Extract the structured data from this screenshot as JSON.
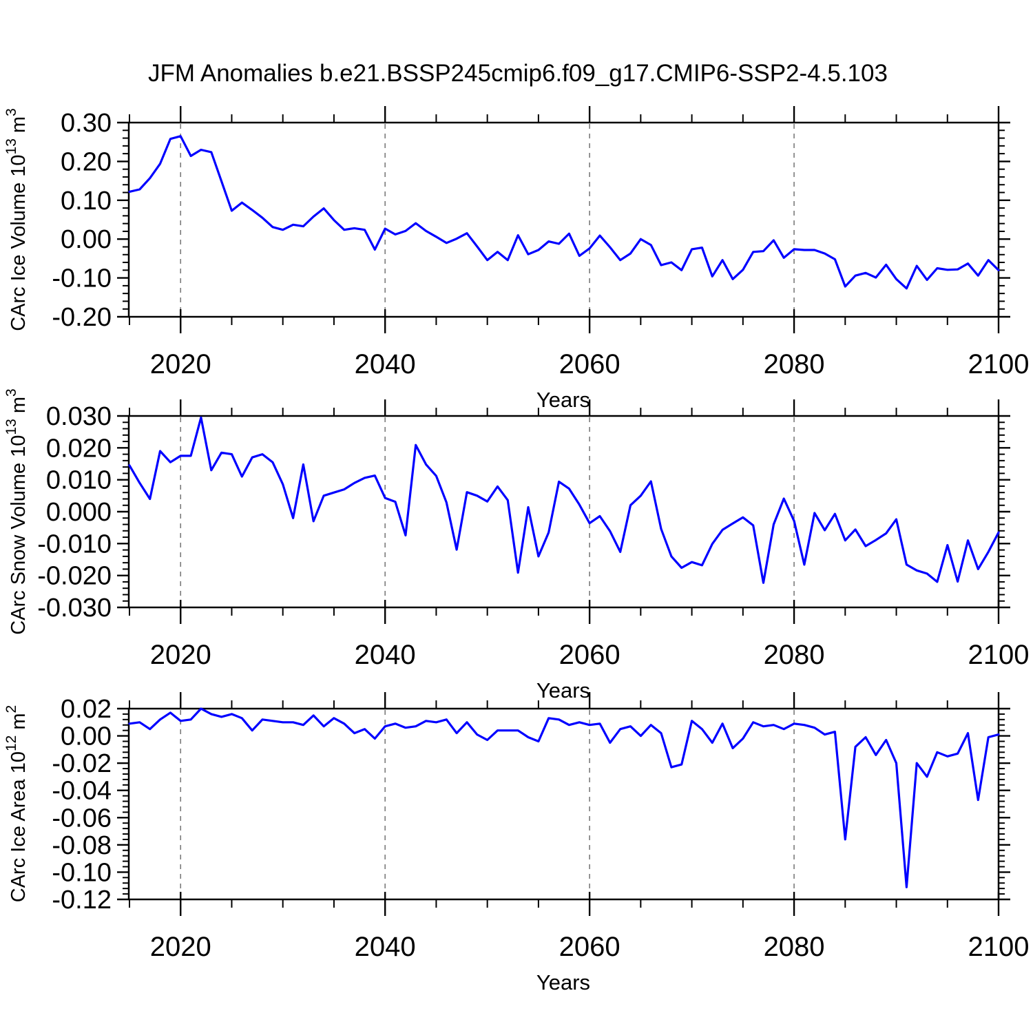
{
  "title": "JFM Anomalies b.e21.BSSP245cmip6.f09_g17.CMIP6-SSP2-4.5.103",
  "colors": {
    "line": "#0000ff",
    "axis": "#000000",
    "gridline": "#7a7a7a",
    "background": "#ffffff"
  },
  "x_axis": {
    "label": "Years",
    "range": [
      2015,
      2100
    ],
    "major_ticks": [
      2020,
      2040,
      2060,
      2080,
      2100
    ],
    "minor_tick_step": 5,
    "gridline_years": [
      2020,
      2040,
      2060,
      2080
    ]
  },
  "years": [
    2015,
    2016,
    2017,
    2018,
    2019,
    2020,
    2021,
    2022,
    2023,
    2024,
    2025,
    2026,
    2027,
    2028,
    2029,
    2030,
    2031,
    2032,
    2033,
    2034,
    2035,
    2036,
    2037,
    2038,
    2039,
    2040,
    2041,
    2042,
    2043,
    2044,
    2045,
    2046,
    2047,
    2048,
    2049,
    2050,
    2051,
    2052,
    2053,
    2054,
    2055,
    2056,
    2057,
    2058,
    2059,
    2060,
    2061,
    2062,
    2063,
    2064,
    2065,
    2066,
    2067,
    2068,
    2069,
    2070,
    2071,
    2072,
    2073,
    2074,
    2075,
    2076,
    2077,
    2078,
    2079,
    2080,
    2081,
    2082,
    2083,
    2084,
    2085,
    2086,
    2087,
    2088,
    2089,
    2090,
    2091,
    2092,
    2093,
    2094,
    2095,
    2096,
    2097,
    2098,
    2099,
    2100
  ],
  "chart_data": [
    {
      "type": "line",
      "name": "carc_ice_volume",
      "ylabel_text": "CArc Ice Volume 10^13 m^3",
      "ylabel": {
        "prefix": "CArc Ice Volume 10",
        "exponent": "13",
        "unit": " m",
        "unit_exponent": "3"
      },
      "ylim": [
        -0.2,
        0.3
      ],
      "ytick_values": [
        0.3,
        0.2,
        0.1,
        0.0,
        -0.1,
        -0.2
      ],
      "ytick_labels": [
        "0.30",
        "0.20",
        "0.10",
        "0.00",
        "-0.10",
        "-0.20"
      ],
      "minor_tick_step": 0.02,
      "values": [
        0.122,
        0.128,
        0.157,
        0.194,
        0.258,
        0.265,
        0.214,
        0.23,
        0.224,
        0.149,
        0.073,
        0.094,
        0.075,
        0.055,
        0.031,
        0.024,
        0.037,
        0.033,
        0.058,
        0.079,
        0.049,
        0.024,
        0.028,
        0.024,
        -0.027,
        0.027,
        0.012,
        0.021,
        0.041,
        0.021,
        0.006,
        -0.01,
        0.001,
        0.015,
        -0.019,
        -0.054,
        -0.033,
        -0.054,
        0.01,
        -0.039,
        -0.028,
        -0.006,
        -0.012,
        0.014,
        -0.043,
        -0.024,
        0.009,
        -0.021,
        -0.054,
        -0.037,
        0.0,
        -0.015,
        -0.067,
        -0.06,
        -0.08,
        -0.026,
        -0.022,
        -0.096,
        -0.054,
        -0.103,
        -0.079,
        -0.033,
        -0.031,
        -0.003,
        -0.048,
        -0.026,
        -0.028,
        -0.028,
        -0.037,
        -0.052,
        -0.122,
        -0.094,
        -0.087,
        -0.099,
        -0.066,
        -0.103,
        -0.127,
        -0.069,
        -0.105,
        -0.075,
        -0.079,
        -0.078,
        -0.063,
        -0.094,
        -0.054,
        -0.08
      ]
    },
    {
      "type": "line",
      "name": "carc_snow_volume",
      "ylabel_text": "CArc Snow Volume 10^13 m^3",
      "ylabel": {
        "prefix": "CArc Snow Volume 10",
        "exponent": "13",
        "unit": " m",
        "unit_exponent": "3"
      },
      "ylim": [
        -0.03,
        0.03
      ],
      "ytick_values": [
        0.03,
        0.02,
        0.01,
        0.0,
        -0.01,
        -0.02,
        -0.03
      ],
      "ytick_labels": [
        "0.030",
        "0.020",
        "0.010",
        "0.000",
        "-0.010",
        "-0.020",
        "-0.030"
      ],
      "minor_tick_step": 0.002,
      "values": [
        0.0145,
        0.009,
        0.004,
        0.019,
        0.0155,
        0.0175,
        0.0175,
        0.0295,
        0.013,
        0.0185,
        0.018,
        0.011,
        0.017,
        0.018,
        0.0155,
        0.0086,
        -0.002,
        0.0148,
        -0.003,
        0.005,
        0.006,
        0.007,
        0.009,
        0.0106,
        0.0113,
        0.0043,
        0.0031,
        -0.0074,
        0.0209,
        0.0148,
        0.0112,
        0.0029,
        -0.0119,
        0.0061,
        0.005,
        0.0032,
        0.0079,
        0.0036,
        -0.0191,
        0.0014,
        -0.014,
        -0.0065,
        0.0094,
        0.0072,
        0.0022,
        -0.0036,
        -0.0014,
        -0.0061,
        -0.0126,
        0.002,
        0.005,
        0.0095,
        -0.0054,
        -0.014,
        -0.0176,
        -0.0158,
        -0.0168,
        -0.0101,
        -0.0057,
        -0.0037,
        -0.0018,
        -0.0043,
        -0.0223,
        -0.004,
        0.0041,
        -0.0029,
        -0.0166,
        -0.0004,
        -0.0058,
        -0.0007,
        -0.009,
        -0.0056,
        -0.0108,
        -0.0089,
        -0.0068,
        -0.0024,
        -0.0166,
        -0.0184,
        -0.0194,
        -0.022,
        -0.0105,
        -0.0219,
        -0.009,
        -0.018,
        -0.0126,
        -0.0065
      ]
    },
    {
      "type": "line",
      "name": "carc_ice_area",
      "ylabel_text": "CArc Ice Area 10^12 m^2",
      "ylabel": {
        "prefix": "CArc Ice Area 10",
        "exponent": "12",
        "unit": " m",
        "unit_exponent": "2"
      },
      "ylim": [
        -0.12,
        0.02
      ],
      "ytick_values": [
        0.02,
        0.0,
        -0.02,
        -0.04,
        -0.06,
        -0.08,
        -0.1,
        -0.12
      ],
      "ytick_labels": [
        "0.02",
        "0.00",
        "-0.02",
        "-0.04",
        "-0.06",
        "-0.08",
        "-0.10",
        "-0.12"
      ],
      "minor_tick_step": 0.004,
      "values": [
        0.009,
        0.01,
        0.005,
        0.012,
        0.017,
        0.011,
        0.012,
        0.02,
        0.016,
        0.014,
        0.016,
        0.013,
        0.004,
        0.012,
        0.011,
        0.01,
        0.01,
        0.008,
        0.015,
        0.007,
        0.013,
        0.009,
        0.002,
        0.005,
        -0.002,
        0.007,
        0.009,
        0.006,
        0.007,
        0.011,
        0.01,
        0.012,
        0.002,
        0.01,
        0.001,
        -0.003,
        0.004,
        0.004,
        0.004,
        -0.001,
        -0.004,
        0.013,
        0.012,
        0.008,
        0.01,
        0.008,
        0.009,
        -0.005,
        0.005,
        0.007,
        0.0,
        0.008,
        0.002,
        -0.023,
        -0.021,
        0.011,
        0.005,
        -0.005,
        0.009,
        -0.009,
        -0.002,
        0.01,
        0.007,
        0.008,
        0.005,
        0.009,
        0.008,
        0.006,
        0.001,
        0.003,
        -0.076,
        -0.008,
        -0.001,
        -0.014,
        -0.003,
        -0.02,
        -0.111,
        -0.02,
        -0.03,
        -0.012,
        -0.015,
        -0.013,
        0.002,
        -0.047,
        -0.001,
        0.001
      ]
    }
  ]
}
